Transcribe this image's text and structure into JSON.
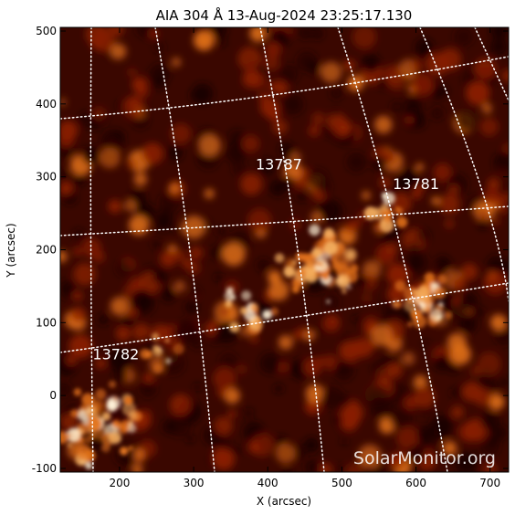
{
  "title": "AIA 304 Å 13-Aug-2024 23:25:17.130",
  "x_axis": {
    "label": "X (arcsec)",
    "range": [
      120,
      725
    ],
    "ticks": [
      200,
      300,
      400,
      500,
      600,
      700
    ],
    "tick_labels": [
      "200",
      "300",
      "400",
      "500",
      "600",
      "700"
    ]
  },
  "y_axis": {
    "label": "Y (arcsec)",
    "range": [
      -105,
      505
    ],
    "ticks": [
      -100,
      0,
      100,
      200,
      300,
      400,
      500
    ],
    "tick_labels": [
      "-100",
      "0",
      "100",
      "200",
      "300",
      "400",
      "500"
    ]
  },
  "regions": [
    {
      "number": "13787",
      "x": 415,
      "y": 310
    },
    {
      "number": "13781",
      "x": 600,
      "y": 283
    },
    {
      "number": "13782",
      "x": 195,
      "y": 50
    }
  ],
  "watermark": "SolarMonitor.org",
  "colors": {
    "dark": "#1a0200",
    "mid": "#8a1e00",
    "bright": "#e0701a",
    "hot": "#fff2d8",
    "grid": "#ffffff"
  }
}
